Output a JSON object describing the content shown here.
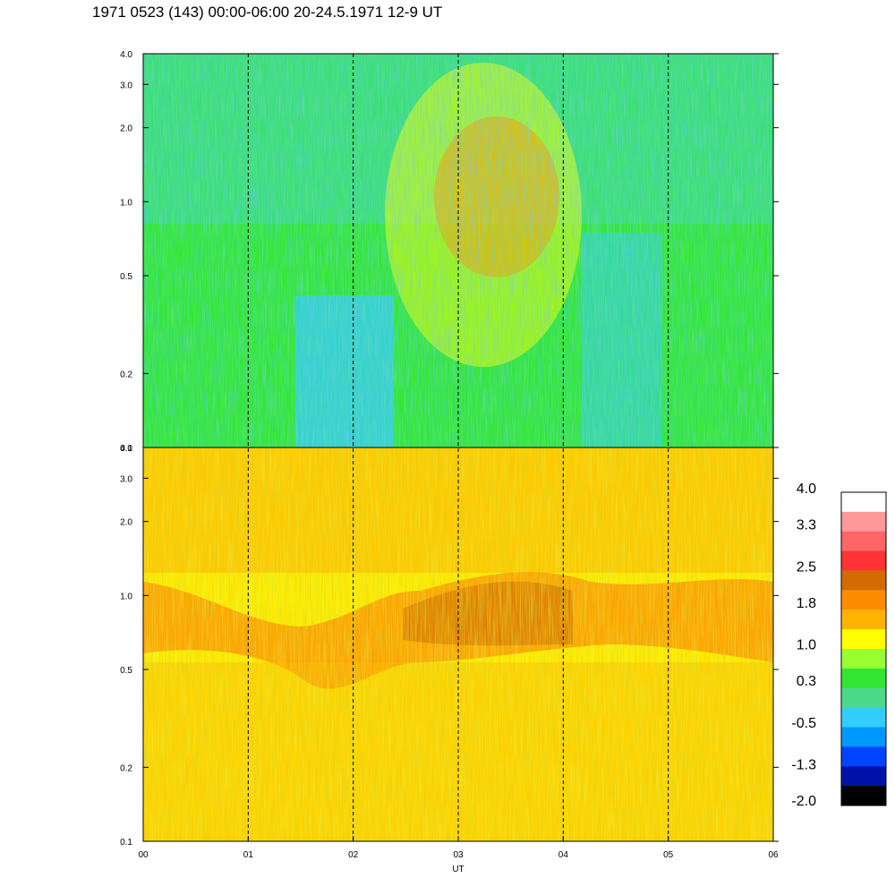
{
  "title": "1971 0523 (143) 00:00-06:00 20-24.5.1971  12-9 UT",
  "chart_data": [
    {
      "type": "heatmap",
      "panel": "upper",
      "y_scale": "log",
      "ylim": [
        0.1,
        4.0
      ],
      "xlim": [
        0,
        6
      ],
      "y_ticks": [
        "0.1",
        "0.2",
        "0.5",
        "1.0",
        "2.0",
        "3.0",
        "4.0"
      ],
      "y_tick_values": [
        0.1,
        0.2,
        0.5,
        1.0,
        2.0,
        3.0,
        4.0
      ],
      "base_color": "#30e830"
    },
    {
      "type": "heatmap",
      "panel": "lower",
      "y_scale": "log",
      "ylim": [
        0.1,
        4.0
      ],
      "xlim": [
        0,
        6
      ],
      "y_ticks": [
        "0.1",
        "0.2",
        "0.5",
        "1.0",
        "2.0",
        "3.0",
        "4.0"
      ],
      "y_tick_values": [
        0.1,
        0.2,
        0.5,
        1.0,
        2.0,
        3.0,
        4.0
      ],
      "base_color": "#ffee00"
    }
  ],
  "x_axis": {
    "label": "UT",
    "ticks": [
      "00",
      "01",
      "02",
      "03",
      "04",
      "05",
      "06"
    ],
    "tick_values": [
      0,
      1,
      2,
      3,
      4,
      5,
      6
    ],
    "dashed_hours": [
      1,
      2,
      3,
      4,
      5
    ]
  },
  "colorbar": {
    "labels": [
      "4.0",
      "3.3",
      "2.5",
      "1.8",
      "1.0",
      "0.3",
      "-0.5",
      "-1.3",
      "-2.0"
    ],
    "label_values": [
      4.0,
      3.3,
      2.5,
      1.8,
      1.0,
      0.3,
      -0.5,
      -1.3,
      -2.0
    ],
    "colors_top_to_bottom": [
      "#ffffff",
      "#ff9999",
      "#ff6666",
      "#ff3333",
      "#d46b00",
      "#ff8c00",
      "#ffb300",
      "#ffff00",
      "#99ff33",
      "#33e633",
      "#4dd98c",
      "#33ccff",
      "#0099ff",
      "#0044ff",
      "#0011aa",
      "#000000"
    ]
  }
}
